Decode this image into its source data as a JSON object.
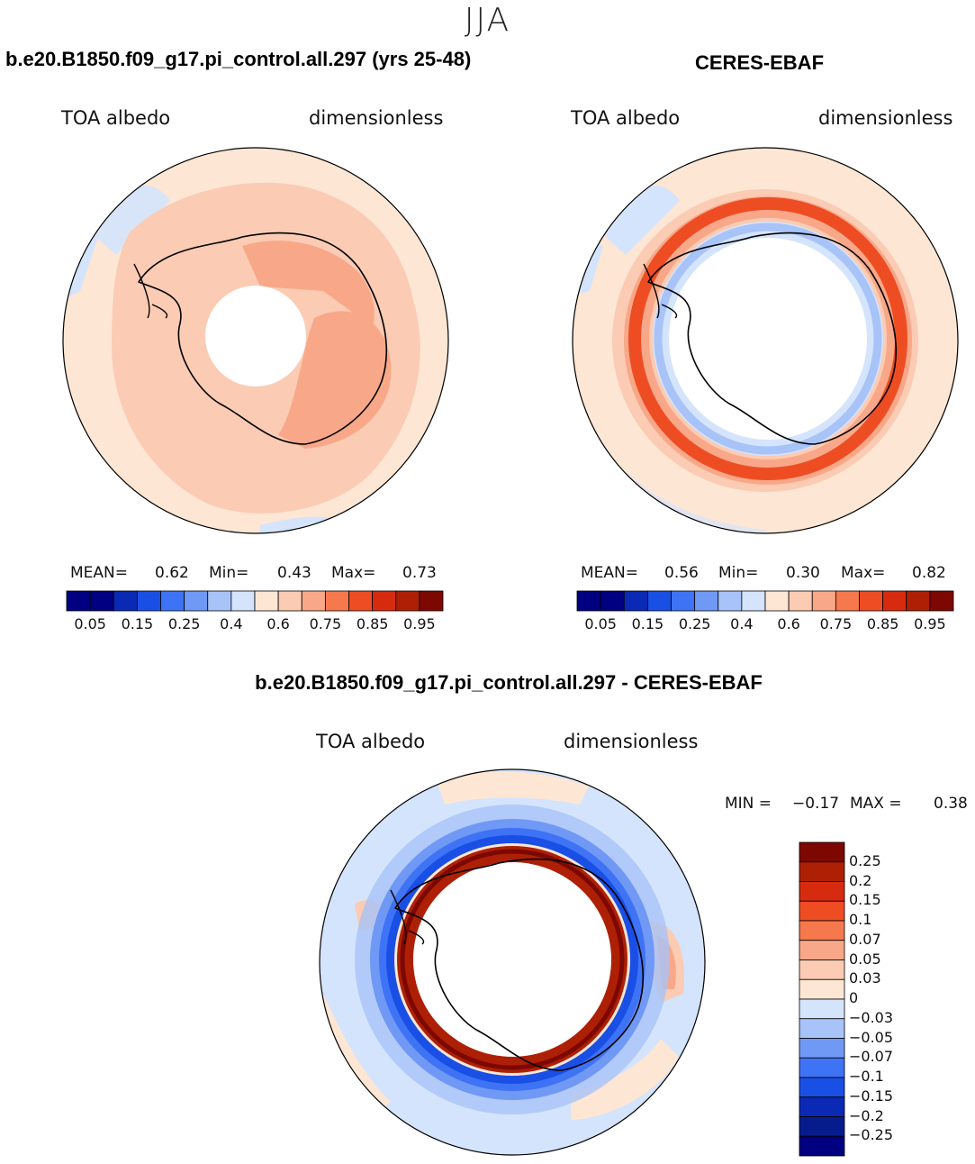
{
  "season": "JJA",
  "colors": {
    "cool": [
      "#000080",
      "#0a29b4",
      "#1a4fe6",
      "#3f73f5",
      "#7098f5",
      "#a7c3f8",
      "#d4e4fc"
    ],
    "warm": [
      "#fde6d4",
      "#fbcbb4",
      "#f8a888",
      "#f6784d",
      "#ee4d23",
      "#d62b0f",
      "#ad2006",
      "#7d0802"
    ],
    "diff_scale_top_down": [
      "#7d0802",
      "#ad2006",
      "#d62b0f",
      "#ee4d23",
      "#f6784d",
      "#f8a888",
      "#fbcbb4",
      "#fde6d4",
      "#d4e4fc",
      "#a7c3f8",
      "#7098f5",
      "#3f73f5",
      "#1a4fe6",
      "#0a29b4",
      "#061c8c",
      "#000080"
    ]
  },
  "panels": {
    "model": {
      "title": "b.e20.B1850.f09_g17.pi_control.all.297 (yrs 25-48)",
      "variable": "TOA albedo",
      "units": "dimensionless",
      "mean_label": "MEAN=",
      "mean": "0.62",
      "min_label": "Min=",
      "min": "0.43",
      "max_label": "Max=",
      "max": "0.73"
    },
    "obs": {
      "title": "CERES-EBAF",
      "variable": "TOA albedo",
      "units": "dimensionless",
      "mean_label": "MEAN=",
      "mean": "0.56",
      "min_label": "Min=",
      "min": "0.30",
      "max_label": "Max=",
      "max": "0.82"
    },
    "diff": {
      "title": "b.e20.B1850.f09_g17.pi_control.all.297 - CERES-EBAF",
      "variable": "TOA albedo",
      "units": "dimensionless",
      "min_label": "MIN =",
      "min": "−0.17",
      "max_label": "MAX =",
      "max": "0.38"
    }
  },
  "colorbar_ticks": [
    "0.05",
    "0.15",
    "0.25",
    "0.4",
    "0.6",
    "0.75",
    "0.85",
    "0.95"
  ],
  "diff_colorbar_ticks": [
    "0.25",
    "0.2",
    "0.15",
    "0.1",
    "0.07",
    "0.05",
    "0.03",
    "0",
    "−0.03",
    "−0.05",
    "−0.07",
    "−0.1",
    "−0.15",
    "−0.2",
    "−0.25"
  ]
}
